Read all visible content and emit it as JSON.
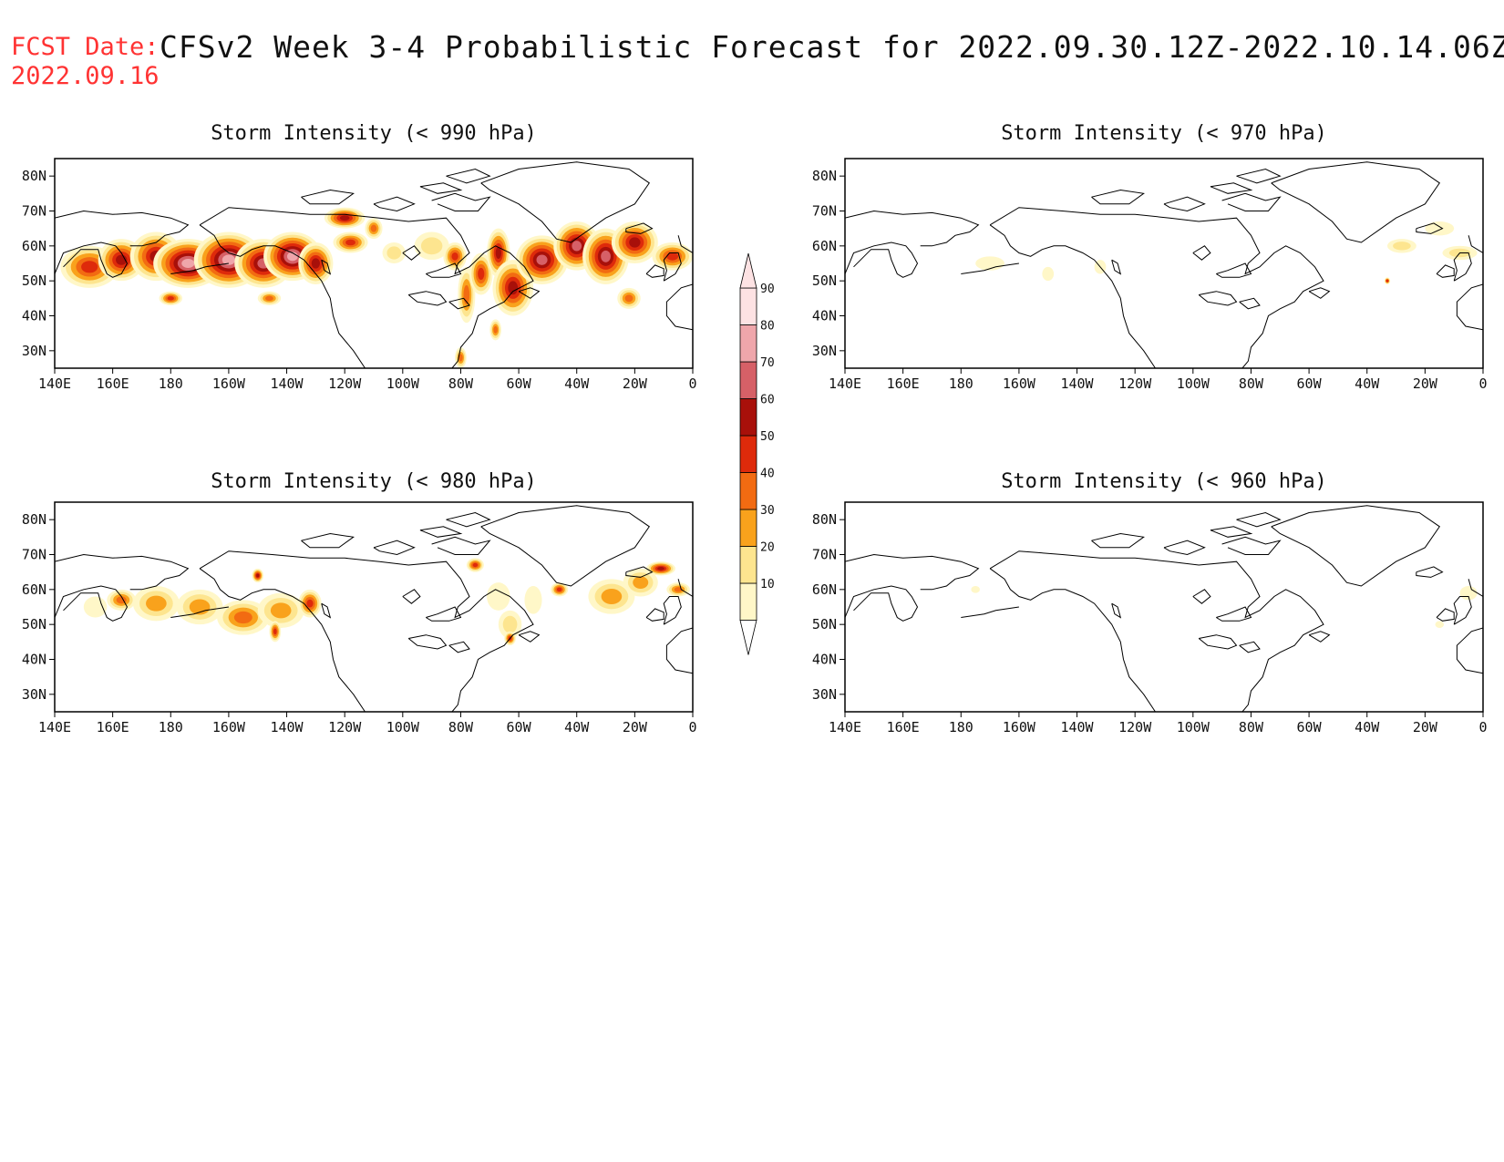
{
  "header": {
    "label": "FCST Date:",
    "title": "CFSv2 Week 3-4 Probabilistic Forecast for 2022.09.30.12Z-2022.10.14.06Z",
    "date": "2022.09.16"
  },
  "x_ticks": [
    "140E",
    "160E",
    "180",
    "160W",
    "140W",
    "120W",
    "100W",
    "80W",
    "60W",
    "40W",
    "20W",
    "0"
  ],
  "y_ticks": [
    "80N",
    "70N",
    "60N",
    "50N",
    "40N",
    "30N"
  ],
  "map_extent": {
    "lon_range": [
      140,
      360
    ],
    "lat_range": [
      25,
      85
    ]
  },
  "colorbar": {
    "ticks": [
      "90",
      "80",
      "70",
      "60",
      "50",
      "40",
      "30",
      "20",
      "10"
    ],
    "colors": [
      "#fff7c8",
      "#fde58f",
      "#f9a21c",
      "#f26b12",
      "#de2a0b",
      "#a8100a",
      "#d66067",
      "#efa6ab",
      "#fde2e3"
    ]
  },
  "panels": [
    {
      "id": "p990",
      "title": "Storm Intensity (< 990 hPa)",
      "blobs": [
        {
          "lon": 152,
          "lat": 54,
          "dlon": 10,
          "dlat": 6,
          "level": 5
        },
        {
          "lon": 163,
          "lat": 56,
          "dlon": 8,
          "dlat": 6,
          "level": 6
        },
        {
          "lon": 175,
          "lat": 57,
          "dlon": 9,
          "dlat": 7,
          "level": 6
        },
        {
          "lon": 186,
          "lat": 55,
          "dlon": 12,
          "dlat": 7,
          "level": 8
        },
        {
          "lon": 200,
          "lat": 56,
          "dlon": 12,
          "dlat": 8,
          "level": 8
        },
        {
          "lon": 212,
          "lat": 55,
          "dlon": 10,
          "dlat": 7,
          "level": 7
        },
        {
          "lon": 222,
          "lat": 57,
          "dlon": 10,
          "dlat": 7,
          "level": 8
        },
        {
          "lon": 230,
          "lat": 55,
          "dlon": 6,
          "dlat": 6,
          "level": 6
        },
        {
          "lon": 180,
          "lat": 45,
          "dlon": 4,
          "dlat": 2,
          "level": 5
        },
        {
          "lon": 214,
          "lat": 45,
          "dlon": 4,
          "dlat": 2,
          "level": 4
        },
        {
          "lon": 240,
          "lat": 68,
          "dlon": 7,
          "dlat": 3,
          "level": 6
        },
        {
          "lon": 242,
          "lat": 61,
          "dlon": 6,
          "dlat": 3,
          "level": 5
        },
        {
          "lon": 250,
          "lat": 65,
          "dlon": 3,
          "dlat": 3,
          "level": 4
        },
        {
          "lon": 257,
          "lat": 58,
          "dlon": 4,
          "dlat": 3,
          "level": 2
        },
        {
          "lon": 270,
          "lat": 60,
          "dlon": 6,
          "dlat": 4,
          "level": 2
        },
        {
          "lon": 278,
          "lat": 57,
          "dlon": 4,
          "dlat": 4,
          "level": 5
        },
        {
          "lon": 282,
          "lat": 46,
          "dlon": 3,
          "dlat": 8,
          "level": 4
        },
        {
          "lon": 287,
          "lat": 52,
          "dlon": 4,
          "dlat": 6,
          "level": 5
        },
        {
          "lon": 293,
          "lat": 58,
          "dlon": 4,
          "dlat": 7,
          "level": 6
        },
        {
          "lon": 298,
          "lat": 48,
          "dlon": 7,
          "dlat": 8,
          "level": 6
        },
        {
          "lon": 308,
          "lat": 56,
          "dlon": 9,
          "dlat": 7,
          "level": 7
        },
        {
          "lon": 320,
          "lat": 60,
          "dlon": 8,
          "dlat": 7,
          "level": 7
        },
        {
          "lon": 330,
          "lat": 57,
          "dlon": 8,
          "dlat": 8,
          "level": 7
        },
        {
          "lon": 340,
          "lat": 61,
          "dlon": 8,
          "dlat": 6,
          "level": 6
        },
        {
          "lon": 353,
          "lat": 57,
          "dlon": 7,
          "dlat": 4,
          "level": 5
        },
        {
          "lon": 338,
          "lat": 45,
          "dlon": 4,
          "dlat": 3,
          "level": 4
        },
        {
          "lon": 292,
          "lat": 36,
          "dlon": 2,
          "dlat": 3,
          "level": 4
        },
        {
          "lon": 280,
          "lat": 28,
          "dlon": 2,
          "dlat": 3,
          "level": 4
        }
      ]
    },
    {
      "id": "p970",
      "title": "Storm Intensity (< 970 hPa)",
      "blobs": [
        {
          "lon": 190,
          "lat": 55,
          "dlon": 5,
          "dlat": 2,
          "level": 1
        },
        {
          "lon": 210,
          "lat": 52,
          "dlon": 2,
          "dlat": 2,
          "level": 1
        },
        {
          "lon": 228,
          "lat": 54,
          "dlon": 2,
          "dlat": 2,
          "level": 1
        },
        {
          "lon": 332,
          "lat": 60,
          "dlon": 5,
          "dlat": 2,
          "level": 2
        },
        {
          "lon": 345,
          "lat": 65,
          "dlon": 5,
          "dlat": 2,
          "level": 1
        },
        {
          "lon": 352,
          "lat": 58,
          "dlon": 6,
          "dlat": 2,
          "level": 2
        },
        {
          "lon": 327,
          "lat": 50,
          "dlon": 1,
          "dlat": 1,
          "level": 5
        }
      ]
    },
    {
      "id": "p980",
      "title": "Storm Intensity (< 980 hPa)",
      "blobs": [
        {
          "lon": 154,
          "lat": 55,
          "dlon": 4,
          "dlat": 3,
          "level": 1
        },
        {
          "lon": 163,
          "lat": 57,
          "dlon": 5,
          "dlat": 3,
          "level": 4
        },
        {
          "lon": 175,
          "lat": 56,
          "dlon": 8,
          "dlat": 5,
          "level": 3
        },
        {
          "lon": 190,
          "lat": 55,
          "dlon": 8,
          "dlat": 5,
          "level": 3
        },
        {
          "lon": 205,
          "lat": 52,
          "dlon": 9,
          "dlat": 5,
          "level": 4
        },
        {
          "lon": 218,
          "lat": 54,
          "dlon": 8,
          "dlat": 5,
          "level": 3
        },
        {
          "lon": 228,
          "lat": 56,
          "dlon": 4,
          "dlat": 4,
          "level": 5
        },
        {
          "lon": 216,
          "lat": 48,
          "dlon": 2,
          "dlat": 3,
          "level": 5
        },
        {
          "lon": 210,
          "lat": 64,
          "dlon": 2,
          "dlat": 2,
          "level": 6
        },
        {
          "lon": 285,
          "lat": 67,
          "dlon": 3,
          "dlat": 2,
          "level": 5
        },
        {
          "lon": 293,
          "lat": 58,
          "dlon": 4,
          "dlat": 4,
          "level": 1
        },
        {
          "lon": 297,
          "lat": 50,
          "dlon": 4,
          "dlat": 4,
          "level": 2
        },
        {
          "lon": 297,
          "lat": 46,
          "dlon": 2,
          "dlat": 2,
          "level": 5
        },
        {
          "lon": 314,
          "lat": 60,
          "dlon": 3,
          "dlat": 2,
          "level": 5
        },
        {
          "lon": 305,
          "lat": 57,
          "dlon": 3,
          "dlat": 4,
          "level": 1
        },
        {
          "lon": 332,
          "lat": 58,
          "dlon": 8,
          "dlat": 5,
          "level": 3
        },
        {
          "lon": 342,
          "lat": 62,
          "dlon": 6,
          "dlat": 4,
          "level": 3
        },
        {
          "lon": 349,
          "lat": 66,
          "dlon": 5,
          "dlat": 2,
          "level": 6
        },
        {
          "lon": 355,
          "lat": 60,
          "dlon": 4,
          "dlat": 2,
          "level": 4
        }
      ]
    },
    {
      "id": "p960",
      "title": "Storm Intensity (< 960 hPa)",
      "blobs": [
        {
          "lon": 185,
          "lat": 60,
          "dlon": 1.5,
          "dlat": 1,
          "level": 1
        },
        {
          "lon": 345,
          "lat": 50,
          "dlon": 1.5,
          "dlat": 1,
          "level": 1
        },
        {
          "lon": 355,
          "lat": 59,
          "dlon": 3,
          "dlat": 2,
          "level": 1
        }
      ]
    }
  ]
}
